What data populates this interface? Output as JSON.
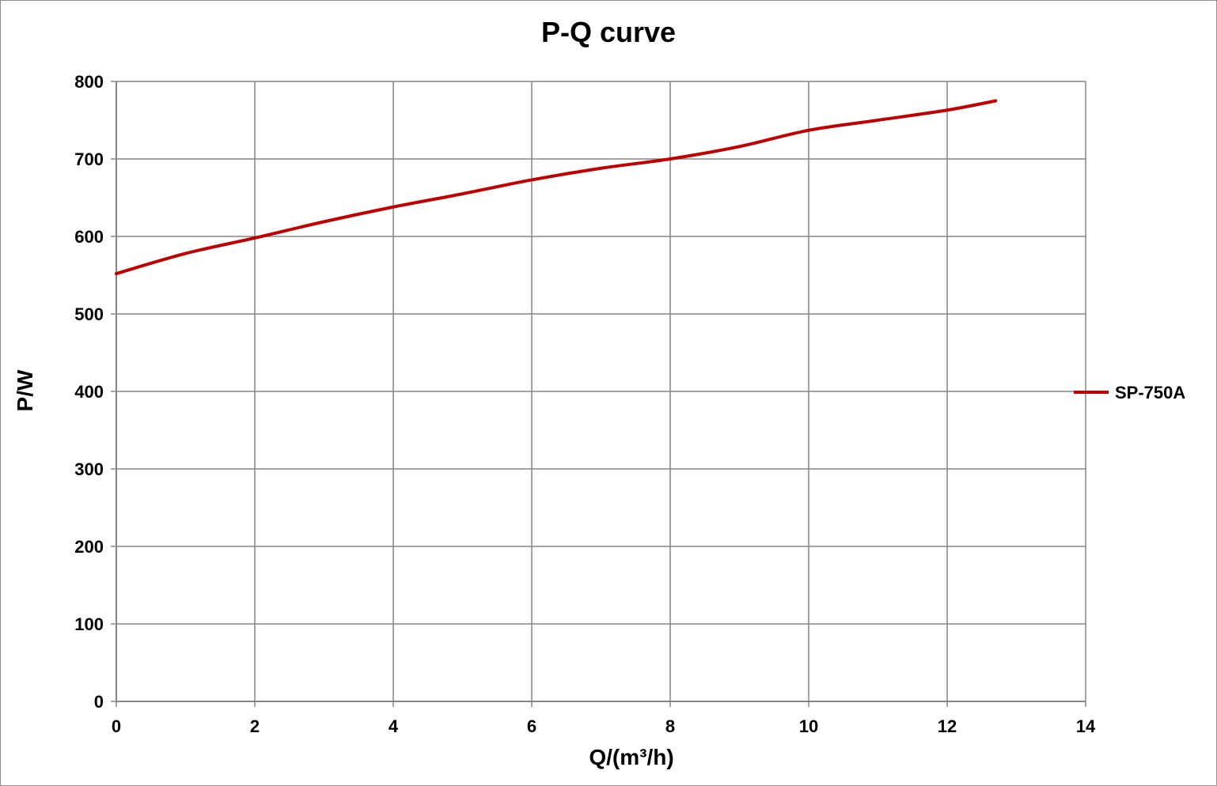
{
  "chart_data": {
    "type": "line",
    "title": "P-Q  curve",
    "xlabel": "Q/(m³/h)",
    "ylabel": "P/W",
    "xlim": [
      0,
      14
    ],
    "ylim": [
      0,
      800
    ],
    "x_ticks": [
      "0",
      "2",
      "4",
      "6",
      "8",
      "10",
      "12",
      "14"
    ],
    "y_ticks": [
      "0",
      "100",
      "200",
      "300",
      "400",
      "500",
      "600",
      "700",
      "800"
    ],
    "grid": true,
    "legend_position": "right",
    "series": [
      {
        "name": "SP-750A",
        "color": "#c00000",
        "x": [
          0,
          1,
          2,
          3,
          4,
          5,
          6,
          7,
          8,
          9,
          10,
          11,
          12,
          12.7
        ],
        "y": [
          552,
          578,
          598,
          619,
          638,
          655,
          673,
          688,
          700,
          716,
          737,
          750,
          763,
          775
        ]
      }
    ]
  }
}
